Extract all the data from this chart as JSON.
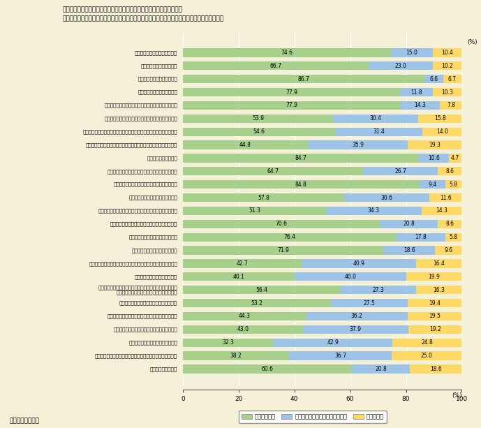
{
  "title_line1": "問　現在お住まいの地域での暮らしや生活環境についてお聞きします。",
  "title_line2": "　　それぞれの項目について、あなたの暮らしや生活にとって、どの程度重要だと思いますか。",
  "source": "資料）国土交通省",
  "categories": [
    "自然の豊かさや環境保全の状況",
    "まちなみや景観の整備状況",
    "治安のよさや防犯対策の状況",
    "自然災害等に対する防災体制",
    "お住まいの住宅の状況（敷地や住居の広さ、快適さ）",
    "住宅の取得・保有の状況（住宅ローンや家賃の負担）",
    "雇用機会や働く場（やりたい仕事に就く機会が身近にあるかどうか）",
    "地域経済の状況（商工業、農業、観光業などの地域の産業の状況）",
    "日常の買い物の利便性",
    "ショッピングを楽しめるような多様な商店等の集積",
    "病院や診療所などの施設や医療サービスの状況",
    "公園や水辺・親水空間の整備の状況",
    "文化や教養活動・レジャーのための施設やサービスの状況",
    "安全に歩ける歩行空間や自転車空間の整備の状況",
    "公共交通（鉄道、バス等）の利便性",
    "生活道路や幹線道路の整備の状況",
    "子供の遊び場や保育所など子育てのための施設やサービスの状況",
    "居住地域内での学校教育の機会",
    "高齢者等にとって暮らしやすいような地域のバリアフリー\n（障害や障壁を取除いた施設や工夫）の状況",
    "介護・福祉のための施設やサービスの状況",
    "地域の人々のつながりや地域のコミュニティの状況",
    "まちの魅力やにぎわいに富んだ地域社会の状況",
    "地域の伝統文化の保護・活用の状況",
    "慣習やしきたりから自由な人間関係が確保された地域の状況",
    "情報通信基盤の状況"
  ],
  "v1": [
    74.6,
    66.7,
    86.7,
    77.9,
    77.9,
    53.9,
    54.6,
    44.8,
    84.7,
    64.7,
    84.8,
    57.8,
    51.3,
    70.6,
    76.4,
    71.9,
    42.7,
    40.1,
    56.4,
    53.2,
    44.3,
    43.0,
    32.3,
    38.2,
    60.6
  ],
  "v2": [
    15.0,
    23.0,
    6.6,
    11.8,
    14.3,
    30.4,
    31.4,
    35.9,
    10.6,
    26.7,
    9.4,
    30.6,
    34.3,
    20.8,
    17.8,
    18.6,
    40.9,
    40.0,
    27.3,
    27.5,
    36.2,
    37.9,
    42.9,
    36.7,
    20.8
  ],
  "v3": [
    10.4,
    10.2,
    6.7,
    10.3,
    7.8,
    15.8,
    14.0,
    19.3,
    4.7,
    8.6,
    5.8,
    11.6,
    14.3,
    8.6,
    5.8,
    9.6,
    16.4,
    19.9,
    16.3,
    19.4,
    19.5,
    19.2,
    24.8,
    25.0,
    18.6
  ],
  "color1": "#a8d08d",
  "color2": "#9dc3e6",
  "color3": "#ffd966",
  "bg_color": "#f5f0d8",
  "legend_labels": [
    "重要度が高い",
    "重要度が低い・自分には関係ない",
    "わからない"
  ],
  "xlabel": "（%）",
  "bar_height": 0.65,
  "figsize": [
    6.89,
    6.13
  ]
}
